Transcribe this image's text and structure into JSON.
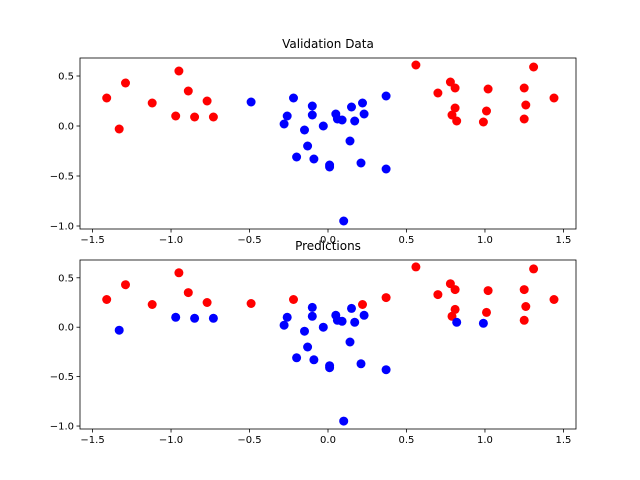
{
  "chart_data": [
    {
      "type": "scatter",
      "title": "Validation Data",
      "xlabel": "",
      "ylabel": "",
      "xlim": [
        -1.58,
        1.58
      ],
      "ylim": [
        -1.03,
        0.68
      ],
      "xticks": [
        -1.5,
        -1.0,
        -0.5,
        0.0,
        0.5,
        1.0,
        1.5
      ],
      "xtick_labels": [
        "−1.5",
        "−1.0",
        "−0.5",
        "0.0",
        "0.5",
        "1.0",
        "1.5"
      ],
      "yticks": [
        0.5,
        0.0,
        -0.5,
        -1.0
      ],
      "ytick_labels": [
        "0.5",
        "0.0",
        "−0.5",
        "−1.0"
      ],
      "grid": false,
      "colors": {
        "red": "#ff0000",
        "blue": "#0000ff"
      },
      "points": [
        {
          "x": -1.41,
          "y": 0.28,
          "c": "red"
        },
        {
          "x": -1.29,
          "y": 0.43,
          "c": "red"
        },
        {
          "x": -1.33,
          "y": -0.03,
          "c": "red"
        },
        {
          "x": -1.12,
          "y": 0.23,
          "c": "red"
        },
        {
          "x": -0.95,
          "y": 0.55,
          "c": "red"
        },
        {
          "x": -0.97,
          "y": 0.1,
          "c": "red"
        },
        {
          "x": -0.89,
          "y": 0.35,
          "c": "red"
        },
        {
          "x": -0.85,
          "y": 0.09,
          "c": "red"
        },
        {
          "x": -0.77,
          "y": 0.25,
          "c": "red"
        },
        {
          "x": -0.73,
          "y": 0.09,
          "c": "red"
        },
        {
          "x": -0.49,
          "y": 0.24,
          "c": "blue"
        },
        {
          "x": -0.28,
          "y": 0.02,
          "c": "blue"
        },
        {
          "x": -0.26,
          "y": 0.1,
          "c": "blue"
        },
        {
          "x": -0.22,
          "y": 0.28,
          "c": "blue"
        },
        {
          "x": -0.2,
          "y": -0.31,
          "c": "blue"
        },
        {
          "x": -0.15,
          "y": -0.04,
          "c": "blue"
        },
        {
          "x": -0.13,
          "y": -0.2,
          "c": "blue"
        },
        {
          "x": -0.1,
          "y": 0.2,
          "c": "blue"
        },
        {
          "x": -0.1,
          "y": 0.11,
          "c": "blue"
        },
        {
          "x": -0.09,
          "y": -0.33,
          "c": "blue"
        },
        {
          "x": -0.03,
          "y": 0.0,
          "c": "blue"
        },
        {
          "x": 0.01,
          "y": -0.39,
          "c": "blue"
        },
        {
          "x": 0.01,
          "y": -0.41,
          "c": "blue"
        },
        {
          "x": 0.05,
          "y": 0.12,
          "c": "blue"
        },
        {
          "x": 0.06,
          "y": 0.07,
          "c": "blue"
        },
        {
          "x": 0.09,
          "y": 0.06,
          "c": "blue"
        },
        {
          "x": 0.1,
          "y": -0.95,
          "c": "blue"
        },
        {
          "x": 0.14,
          "y": -0.15,
          "c": "blue"
        },
        {
          "x": 0.15,
          "y": 0.19,
          "c": "blue"
        },
        {
          "x": 0.17,
          "y": 0.05,
          "c": "blue"
        },
        {
          "x": 0.21,
          "y": -0.37,
          "c": "blue"
        },
        {
          "x": 0.22,
          "y": 0.23,
          "c": "blue"
        },
        {
          "x": 0.23,
          "y": 0.12,
          "c": "blue"
        },
        {
          "x": 0.37,
          "y": 0.3,
          "c": "blue"
        },
        {
          "x": 0.37,
          "y": -0.43,
          "c": "blue"
        },
        {
          "x": 0.56,
          "y": 0.61,
          "c": "red"
        },
        {
          "x": 0.7,
          "y": 0.33,
          "c": "red"
        },
        {
          "x": 0.78,
          "y": 0.44,
          "c": "red"
        },
        {
          "x": 0.79,
          "y": 0.11,
          "c": "red"
        },
        {
          "x": 0.81,
          "y": 0.38,
          "c": "red"
        },
        {
          "x": 0.81,
          "y": 0.18,
          "c": "red"
        },
        {
          "x": 0.82,
          "y": 0.05,
          "c": "red"
        },
        {
          "x": 0.99,
          "y": 0.04,
          "c": "red"
        },
        {
          "x": 1.01,
          "y": 0.15,
          "c": "red"
        },
        {
          "x": 1.02,
          "y": 0.37,
          "c": "red"
        },
        {
          "x": 1.25,
          "y": 0.38,
          "c": "red"
        },
        {
          "x": 1.25,
          "y": 0.07,
          "c": "red"
        },
        {
          "x": 1.26,
          "y": 0.21,
          "c": "red"
        },
        {
          "x": 1.31,
          "y": 0.59,
          "c": "red"
        },
        {
          "x": 1.44,
          "y": 0.28,
          "c": "red"
        }
      ]
    },
    {
      "type": "scatter",
      "title": "Predictions",
      "xlabel": "",
      "ylabel": "",
      "xlim": [
        -1.58,
        1.58
      ],
      "ylim": [
        -1.03,
        0.68
      ],
      "xticks": [
        -1.5,
        -1.0,
        -0.5,
        0.0,
        0.5,
        1.0,
        1.5
      ],
      "xtick_labels": [
        "−1.5",
        "−1.0",
        "−0.5",
        "0.0",
        "0.5",
        "1.0",
        "1.5"
      ],
      "yticks": [
        0.5,
        0.0,
        -0.5,
        -1.0
      ],
      "ytick_labels": [
        "0.5",
        "0.0",
        "−0.5",
        "−1.0"
      ],
      "grid": false,
      "colors": {
        "red": "#ff0000",
        "blue": "#0000ff"
      },
      "points": [
        {
          "x": -1.41,
          "y": 0.28,
          "c": "red"
        },
        {
          "x": -1.29,
          "y": 0.43,
          "c": "red"
        },
        {
          "x": -1.33,
          "y": -0.03,
          "c": "blue"
        },
        {
          "x": -1.12,
          "y": 0.23,
          "c": "red"
        },
        {
          "x": -0.95,
          "y": 0.55,
          "c": "red"
        },
        {
          "x": -0.97,
          "y": 0.1,
          "c": "blue"
        },
        {
          "x": -0.89,
          "y": 0.35,
          "c": "red"
        },
        {
          "x": -0.85,
          "y": 0.09,
          "c": "blue"
        },
        {
          "x": -0.77,
          "y": 0.25,
          "c": "red"
        },
        {
          "x": -0.73,
          "y": 0.09,
          "c": "blue"
        },
        {
          "x": -0.49,
          "y": 0.24,
          "c": "red"
        },
        {
          "x": -0.28,
          "y": 0.02,
          "c": "blue"
        },
        {
          "x": -0.26,
          "y": 0.1,
          "c": "blue"
        },
        {
          "x": -0.22,
          "y": 0.28,
          "c": "red"
        },
        {
          "x": -0.2,
          "y": -0.31,
          "c": "blue"
        },
        {
          "x": -0.15,
          "y": -0.04,
          "c": "blue"
        },
        {
          "x": -0.13,
          "y": -0.2,
          "c": "blue"
        },
        {
          "x": -0.1,
          "y": 0.2,
          "c": "blue"
        },
        {
          "x": -0.1,
          "y": 0.11,
          "c": "blue"
        },
        {
          "x": -0.09,
          "y": -0.33,
          "c": "blue"
        },
        {
          "x": -0.03,
          "y": 0.0,
          "c": "blue"
        },
        {
          "x": 0.01,
          "y": -0.39,
          "c": "blue"
        },
        {
          "x": 0.01,
          "y": -0.41,
          "c": "blue"
        },
        {
          "x": 0.05,
          "y": 0.12,
          "c": "blue"
        },
        {
          "x": 0.06,
          "y": 0.07,
          "c": "blue"
        },
        {
          "x": 0.09,
          "y": 0.06,
          "c": "blue"
        },
        {
          "x": 0.1,
          "y": -0.95,
          "c": "blue"
        },
        {
          "x": 0.14,
          "y": -0.15,
          "c": "blue"
        },
        {
          "x": 0.15,
          "y": 0.19,
          "c": "blue"
        },
        {
          "x": 0.17,
          "y": 0.05,
          "c": "blue"
        },
        {
          "x": 0.21,
          "y": -0.37,
          "c": "blue"
        },
        {
          "x": 0.22,
          "y": 0.23,
          "c": "red"
        },
        {
          "x": 0.23,
          "y": 0.12,
          "c": "blue"
        },
        {
          "x": 0.37,
          "y": 0.3,
          "c": "red"
        },
        {
          "x": 0.37,
          "y": -0.43,
          "c": "blue"
        },
        {
          "x": 0.56,
          "y": 0.61,
          "c": "red"
        },
        {
          "x": 0.7,
          "y": 0.33,
          "c": "red"
        },
        {
          "x": 0.78,
          "y": 0.44,
          "c": "red"
        },
        {
          "x": 0.79,
          "y": 0.11,
          "c": "red"
        },
        {
          "x": 0.81,
          "y": 0.38,
          "c": "red"
        },
        {
          "x": 0.81,
          "y": 0.18,
          "c": "red"
        },
        {
          "x": 0.82,
          "y": 0.05,
          "c": "blue"
        },
        {
          "x": 0.99,
          "y": 0.04,
          "c": "blue"
        },
        {
          "x": 1.01,
          "y": 0.15,
          "c": "red"
        },
        {
          "x": 1.02,
          "y": 0.37,
          "c": "red"
        },
        {
          "x": 1.25,
          "y": 0.38,
          "c": "red"
        },
        {
          "x": 1.25,
          "y": 0.07,
          "c": "red"
        },
        {
          "x": 1.26,
          "y": 0.21,
          "c": "red"
        },
        {
          "x": 1.31,
          "y": 0.59,
          "c": "red"
        },
        {
          "x": 1.44,
          "y": 0.28,
          "c": "red"
        }
      ]
    }
  ]
}
